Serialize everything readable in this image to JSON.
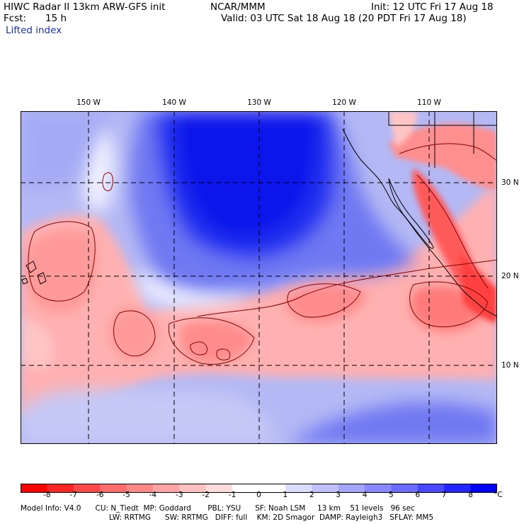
{
  "header": {
    "title": "HIWC Radar II 13km ARW-GFS init",
    "org": "NCAR/MMM",
    "init": "Init: 12 UTC Fri 17 Aug 18",
    "fcst_label": "Fcst:",
    "fcst_value": "15 h",
    "valid": "Valid: 03 UTC Sat 18 Aug 18 (20 PDT Fri 17 Aug 18)",
    "field": "Lifted index"
  },
  "axes": {
    "longitudes": [
      "150 W",
      "140 W",
      "130 W",
      "120 W",
      "110 W"
    ],
    "latitudes": [
      "30 N",
      "20 N",
      "10 N"
    ]
  },
  "colorbar": {
    "labels": [
      "-8",
      "-7",
      "-6",
      "-5",
      "-4",
      "-3",
      "-2",
      "-1",
      "0",
      "1",
      "2",
      "3",
      "4",
      "5",
      "6",
      "7",
      "8"
    ],
    "unit": "°C",
    "colors": [
      "#ff0000",
      "#ff2424",
      "#ff4848",
      "#ff6c6c",
      "#ff8888",
      "#ffa4a4",
      "#ffc0c0",
      "#ffdcdc",
      "#ffffff",
      "#dcdcff",
      "#c0c0ff",
      "#a4a4ff",
      "#8888ff",
      "#6c6cff",
      "#4848ff",
      "#2424ff",
      "#0000ff"
    ]
  },
  "model_info": {
    "line1": "Model Info: V4.0      CU: N_Tiedt  MP: Goddard       PBL: YSU      SF: Noah LSM     13 km    51 levels   96 sec",
    "line2": "LW: RRTMG      SW: RRTMG   DIFF: full    KM: 2D Smagor  DAMP: Rayleigh3   SFLAY: MM5"
  }
}
